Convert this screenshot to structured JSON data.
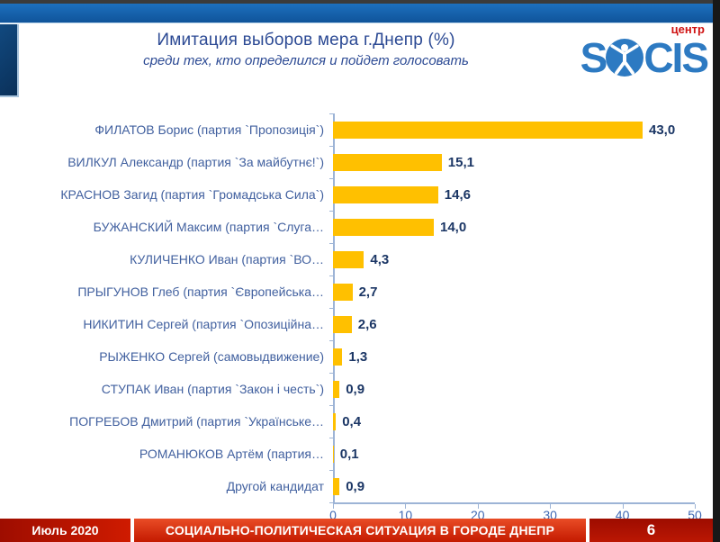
{
  "header": {
    "title": "Имитация выборов мера г.Днепр (%)",
    "subtitle": "среди тех, кто определился и пойдет голосовать",
    "logo": {
      "word": "SOCIS",
      "word_left": "S",
      "word_right": "CIS",
      "suffix": "центр"
    }
  },
  "chart_data": {
    "type": "bar",
    "orientation": "horizontal",
    "title": "Имитация выборов мера г.Днепр (%)",
    "subtitle": "среди тех, кто определился и пойдет голосовать",
    "categories": [
      "ФИЛАТОВ Борис (партия `Пропозиція`)",
      "ВИЛКУЛ Александр (партия `За майбутнє!`)",
      "КРАСНОВ Загид (партия `Громадська Сила`)",
      "БУЖАНСКИЙ Максим (партия `Слуга…",
      "КУЛИЧЕНКО Иван (партия `ВО…",
      "ПРЫГУНОВ Глеб (партия `Європейська…",
      "НИКИТИН Сергей (партия `Опозиційна…",
      "РЫЖЕНКО Сергей (самовыдвижение)",
      "СТУПАК Иван (партия `Закон і честь`)",
      "ПОГРЕБОВ Дмитрий (партия `Українське…",
      "РОМАНЮКОВ Артём (партия…",
      "Другой кандидат"
    ],
    "values": [
      43.0,
      15.1,
      14.6,
      14.0,
      4.3,
      2.7,
      2.6,
      1.3,
      0.9,
      0.4,
      0.1,
      0.9
    ],
    "value_labels": [
      "43,0",
      "15,1",
      "14,6",
      "14,0",
      "4,3",
      "2,7",
      "2,6",
      "1,3",
      "0,9",
      "0,4",
      "0,1",
      "0,9"
    ],
    "xlim": [
      0,
      50
    ],
    "xticks": [
      0,
      10,
      20,
      30,
      40,
      50
    ],
    "grid": false,
    "legend": "none",
    "bar_color": "#FFC000"
  },
  "footer": {
    "date": "Июль 2020",
    "title": "СОЦИАЛЬНО-ПОЛИТИЧЕСКАЯ СИТУАЦИЯ В ГОРОДЕ ДНЕПР",
    "page_number": "6"
  },
  "colors": {
    "bar": "#FFC000",
    "brand_blue": "#2d7ac2",
    "title_blue": "#2c4a94",
    "category_label_blue": "#41609f",
    "value_navy": "#1b3665",
    "axis_line": "#9db4d6",
    "tick_label_blue": "#3f69b4",
    "footer_red": "#c41a00",
    "footer_dark_red": "#9d0c00",
    "logo_suffix_red": "#cf1212"
  }
}
